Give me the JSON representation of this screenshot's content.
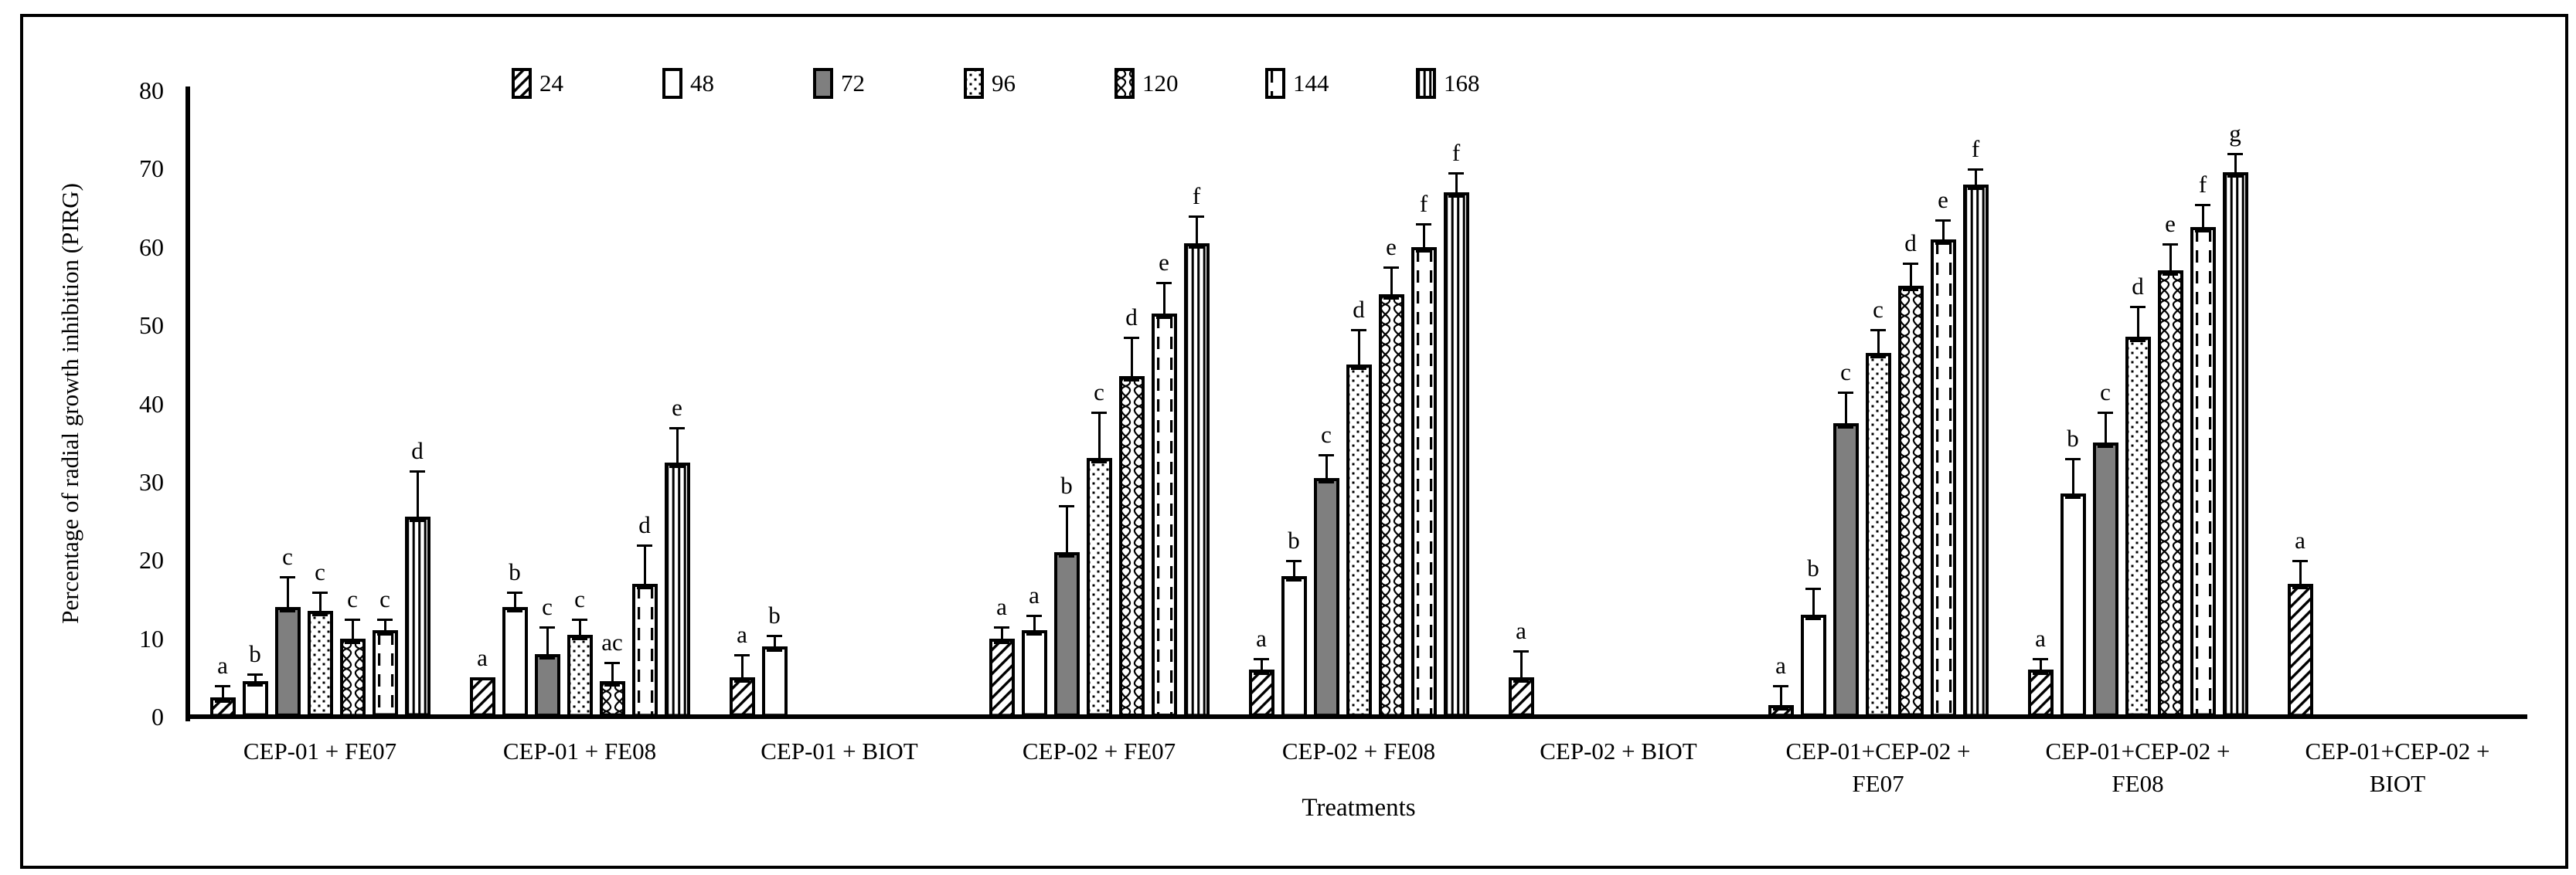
{
  "figure": {
    "y_axis": {
      "title": "Percentage of radial growth inhibition (PIRG)",
      "tick_labels": [
        "0",
        "10",
        "20",
        "30",
        "40",
        "50",
        "60",
        "70",
        "80"
      ]
    },
    "x_axis": {
      "title": "Treatments"
    },
    "legend_labels": [
      "24",
      "48",
      "72",
      "96",
      "120",
      "144",
      "168"
    ]
  },
  "chart_data": {
    "type": "bar",
    "title": "",
    "xlabel": "Treatments",
    "ylabel": "Percentage of radial growth inhibition (PIRG)",
    "ylim": [
      0,
      80
    ],
    "ytick_step": 10,
    "grid": false,
    "legend_position": "top-center",
    "error_bars": true,
    "categories": [
      {
        "label": "CEP-01 + FE07",
        "lines": [
          "CEP-01 + FE07"
        ]
      },
      {
        "label": "CEP-01 + FE08",
        "lines": [
          "CEP-01 + FE08"
        ]
      },
      {
        "label": "CEP-01 + BIOT",
        "lines": [
          "CEP-01 + BIOT"
        ]
      },
      {
        "label": "CEP-02 + FE07",
        "lines": [
          "CEP-02 + FE07"
        ]
      },
      {
        "label": "CEP-02 + FE08",
        "lines": [
          "CEP-02 + FE08"
        ]
      },
      {
        "label": "CEP-02 + BIOT",
        "lines": [
          "CEP-02 + BIOT"
        ]
      },
      {
        "label": "CEP-01+CEP-02 + FE07",
        "lines": [
          "CEP-01+CEP-02 +",
          "FE07"
        ]
      },
      {
        "label": "CEP-01+CEP-02 + FE08",
        "lines": [
          "CEP-01+CEP-02 +",
          "FE08"
        ]
      },
      {
        "label": "CEP-01+CEP-02 + BIOT",
        "lines": [
          "CEP-01+CEP-02 +",
          "BIOT"
        ]
      }
    ],
    "series": [
      {
        "name": "24",
        "pattern": "diagonal-hatch",
        "values": [
          2.5,
          5,
          5,
          10,
          6,
          5,
          1.5,
          6,
          17
        ],
        "errors": [
          1.5,
          0,
          3,
          1.5,
          1.5,
          3.5,
          2.5,
          1.5,
          3
        ],
        "letters": [
          "a",
          "a",
          "a",
          "a",
          "a",
          "a",
          "a",
          "a",
          "a"
        ]
      },
      {
        "name": "48",
        "pattern": "white",
        "values": [
          4.5,
          14,
          9,
          11,
          18,
          0,
          13,
          28.5,
          0
        ],
        "errors": [
          1,
          2,
          1.5,
          2,
          2,
          0,
          3.5,
          4.5,
          0
        ],
        "letters": [
          "b",
          "b",
          "b",
          "a",
          "b",
          "",
          "b",
          "b",
          ""
        ]
      },
      {
        "name": "72",
        "pattern": "gray",
        "values": [
          14,
          8,
          0,
          21,
          30.5,
          0,
          37.5,
          35,
          0
        ],
        "errors": [
          4,
          3.5,
          0,
          6,
          3,
          0,
          4,
          4,
          0
        ],
        "letters": [
          "c",
          "c",
          "",
          "b",
          "c",
          "",
          "c",
          "c",
          ""
        ]
      },
      {
        "name": "96",
        "pattern": "dots",
        "values": [
          13.5,
          10.5,
          0,
          33,
          45,
          0,
          46.5,
          48.5,
          0
        ],
        "errors": [
          2.5,
          2,
          0,
          6,
          4.5,
          0,
          3,
          4,
          0
        ],
        "letters": [
          "c",
          "c",
          "",
          "c",
          "d",
          "",
          "c",
          "d",
          ""
        ]
      },
      {
        "name": "120",
        "pattern": "waves",
        "values": [
          10,
          4.5,
          0,
          43.5,
          54,
          0,
          55,
          57,
          0
        ],
        "errors": [
          2.5,
          2.5,
          0,
          5,
          3.5,
          0,
          3,
          3.5,
          0
        ],
        "letters": [
          "c",
          "ac",
          "",
          "d",
          "e",
          "",
          "d",
          "e",
          ""
        ]
      },
      {
        "name": "144",
        "pattern": "dashed-vertical",
        "values": [
          11,
          17,
          0,
          51.5,
          60,
          0,
          61,
          62.5,
          0
        ],
        "errors": [
          1.5,
          5,
          0,
          4,
          3,
          0,
          2.5,
          3,
          0
        ],
        "letters": [
          "c",
          "d",
          "",
          "e",
          "f",
          "",
          "e",
          "f",
          ""
        ]
      },
      {
        "name": "168",
        "pattern": "vertical-lines",
        "values": [
          25.5,
          32.5,
          0,
          60.5,
          67,
          0,
          68,
          69.5,
          0
        ],
        "errors": [
          6,
          4.5,
          0,
          3.5,
          2.5,
          0,
          2,
          2.5,
          0
        ],
        "letters": [
          "d",
          "e",
          "",
          "f",
          "f",
          "",
          "f",
          "g",
          ""
        ]
      }
    ],
    "colors": {
      "bar_outline": "#000000",
      "gray_fill": "#7f7f7f",
      "background": "#ffffff"
    }
  }
}
